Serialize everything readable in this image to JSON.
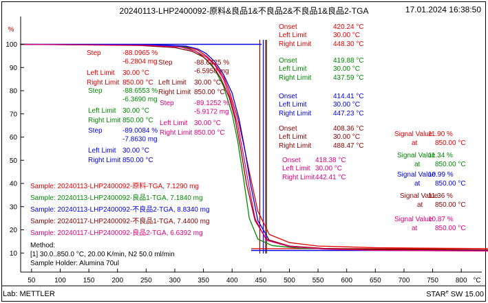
{
  "header": {
    "title": "20240113-LHP2400092-原料&良品1&不良品2&不良品1&良品2-TGA",
    "timestamp": "17.01.2024 16:38:50"
  },
  "footer": {
    "lab": "Lab: METTLER",
    "software_brand": "STAR",
    "software_mark": "e",
    "software_version": "SW 15.00"
  },
  "chart_data": {
    "type": "line",
    "xlabel": "°C",
    "ylabel": "%",
    "xlim": [
      30,
      850
    ],
    "ylim": [
      8,
      104
    ],
    "x_ticks": [
      50,
      100,
      150,
      200,
      250,
      300,
      350,
      400,
      450,
      500,
      550,
      600,
      650,
      700,
      750,
      800
    ],
    "y_ticks": [
      10,
      20,
      30,
      40,
      50,
      60,
      70,
      80,
      90,
      100
    ],
    "grid": false,
    "series": [
      {
        "name": "Sample: 20240113-LHP2400092-原料-TGA, 7.1290 mg",
        "color": "#e00000",
        "x": [
          30,
          250,
          320,
          340,
          355,
          370,
          385,
          395,
          410,
          420,
          430,
          445,
          465,
          500,
          550,
          650,
          850
        ],
        "y": [
          100,
          99.6,
          98.9,
          97.5,
          95.0,
          91.5,
          86.0,
          80.0,
          68.0,
          57.0,
          45.0,
          28.0,
          18.0,
          14.5,
          13.0,
          12.3,
          11.9
        ]
      },
      {
        "name": "Sample: 20240113-LHP2400092-良品1-TGA, 7.1840 mg",
        "color": "#008800",
        "x": [
          30,
          250,
          310,
          325,
          340,
          355,
          370,
          385,
          400,
          410,
          420,
          430,
          445,
          470,
          520,
          650,
          850
        ],
        "y": [
          100,
          99.7,
          99.2,
          98.2,
          96.5,
          93.5,
          89.0,
          82.0,
          70.0,
          58.0,
          42.0,
          25.0,
          16.0,
          13.2,
          12.0,
          11.6,
          11.34
        ]
      },
      {
        "name": "Sample: 20240113-LHP2400092-不良品2-TGA, 8.8340 mg",
        "color": "#0000e0",
        "x": [
          30,
          260,
          320,
          340,
          355,
          370,
          385,
          400,
          412,
          422,
          432,
          445,
          465,
          500,
          560,
          650,
          850
        ],
        "y": [
          100,
          99.8,
          99.2,
          98.0,
          96.0,
          92.5,
          87.0,
          79.0,
          68.0,
          55.0,
          40.0,
          24.0,
          15.5,
          13.0,
          11.8,
          11.3,
          10.99
        ]
      },
      {
        "name": "Sample: 20240117-LHP2400092-不良品1-TGA, 7.4400 mg",
        "color": "#8b0000",
        "x": [
          30,
          240,
          300,
          330,
          350,
          365,
          380,
          395,
          405,
          415,
          425,
          440,
          460,
          500,
          560,
          650,
          850
        ],
        "y": [
          100,
          99.5,
          98.6,
          97.0,
          94.5,
          91.0,
          85.5,
          77.0,
          68.0,
          55.0,
          40.0,
          24.0,
          16.0,
          13.0,
          12.0,
          11.5,
          11.36
        ]
      },
      {
        "name": "Sample: 20240117-LHP2400092-良品2-TGA, 6.6392 mg",
        "color": "#e0007a",
        "x": [
          30,
          250,
          310,
          335,
          355,
          370,
          385,
          398,
          410,
          420,
          430,
          440,
          460,
          500,
          560,
          650,
          850
        ],
        "y": [
          100,
          99.6,
          98.8,
          97.2,
          94.5,
          91.0,
          85.0,
          76.0,
          65.0,
          52.0,
          38.0,
          25.0,
          15.5,
          12.8,
          11.7,
          11.1,
          10.87
        ]
      }
    ],
    "step_blocks": [
      {
        "color": "#e00000",
        "pos": "s1",
        "label": "Step",
        "pct": "-88.0965 %",
        "mg": "-6.2804 mg",
        "left_label": "Left Limit",
        "left": "30.00 °C",
        "right_label": "Right Limit",
        "right": "850.00 °C"
      },
      {
        "color": "#8b0000",
        "pos": "s2",
        "label": "Step",
        "pct": "-88.6425 %",
        "mg": "-6.5950 mg",
        "left_label": "Left Limit",
        "left": "30.00 °C",
        "right_label": "Right Limit",
        "right": "850.00 °C"
      },
      {
        "color": "#008800",
        "pos": "s3",
        "label": "Step",
        "pct": "-88.6553 %",
        "mg": "-6.3690 mg",
        "left_label": "Left Limit",
        "left": "30.00 °C",
        "right_label": "Right Limit",
        "right": "850.00 °C"
      },
      {
        "color": "#e0007a",
        "pos": "s4",
        "label": "Step",
        "pct": "-89.1252 %",
        "mg": "-5.9172 mg",
        "left_label": "Left Limit",
        "left": "30.00 °C",
        "right_label": "Right Limit",
        "right": "850.00 °C"
      },
      {
        "color": "#0000e0",
        "pos": "s5",
        "label": "Step",
        "pct": "-89.0084 %",
        "mg": "-7.8630 mg",
        "left_label": "Left Limit",
        "left": "30.00 °C",
        "right_label": "Right Limit",
        "right": "850.00 °C"
      }
    ],
    "onset_blocks": [
      {
        "color": "#e00000",
        "pos": "o1",
        "label": "Onset",
        "value": "420.24 °C",
        "left_label": "Left Limit",
        "left": "30.00 °C",
        "right_label": "Right Limit",
        "right": "448.30 °C",
        "line_x": 420.24
      },
      {
        "color": "#008800",
        "pos": "o2",
        "label": "Onset",
        "value": "419.88 °C",
        "left_label": "Left Limit",
        "left": "30.00 °C",
        "right_label": "Right Limit",
        "right": "437.59 °C",
        "line_x": 419.88
      },
      {
        "color": "#0000e0",
        "pos": "o3",
        "label": "Onset",
        "value": "414.41 °C",
        "left_label": "Left Limit",
        "left": "30.00 °C",
        "right_label": "Right Limit",
        "right": "447.23 °C",
        "line_x": 414.41
      },
      {
        "color": "#8b0000",
        "pos": "o4",
        "label": "Onset",
        "value": "408.36 °C",
        "left_label": "Left Limit",
        "left": "30.00 °C",
        "right_label": "Right Limit",
        "right": "488.47 °C",
        "line_x": 408.36
      },
      {
        "color": "#e0007a",
        "pos": "o5",
        "label": "Onset",
        "value": "418.38 °C",
        "left_label": "Left Limit",
        "left": "30.00 °C",
        "right_label": "Right Limit",
        "right": "442.41 °C",
        "line_x": 418.38
      }
    ],
    "signal_blocks": [
      {
        "color": "#e00000",
        "pos": "g1",
        "label": "Signal Value",
        "value": "11.90 %",
        "at_label": "at",
        "at": "850.00 °C"
      },
      {
        "color": "#008800",
        "pos": "g2",
        "label": "Signal Value",
        "value": "11.34 %",
        "at_label": "at",
        "at": "850.00 °C"
      },
      {
        "color": "#0000e0",
        "pos": "g3",
        "label": "Signal Value",
        "value": "10.99 %",
        "at_label": "at",
        "at": "850.00 °C"
      },
      {
        "color": "#8b0000",
        "pos": "g4",
        "label": "Signal Value",
        "value": "11.36 %",
        "at_label": "at",
        "at": "850.00 °C"
      },
      {
        "color": "#e0007a",
        "pos": "g5",
        "label": "Signal Value",
        "value": "10.87 %",
        "at_label": "at",
        "at": "850.00 °C"
      }
    ],
    "method": {
      "title": "Method:",
      "line1": "[1] 30.0..850.0 °C, 20.00 K/min,  N2 50.0 ml/min",
      "line2": "Sample Holder: Alumina 70ul"
    }
  }
}
